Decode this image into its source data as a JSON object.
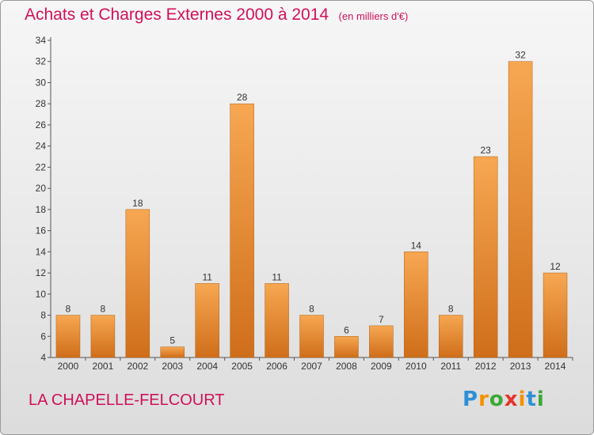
{
  "header": {
    "title": "Achats et Charges Externes 2000 à 2014",
    "subtitle": "(en milliers d'€)"
  },
  "footer": {
    "location": "LA CHAPELLE-FELCOURT",
    "logo_letters": [
      {
        "char": "P",
        "color": "#2e8fd6"
      },
      {
        "char": "r",
        "color": "#f39200"
      },
      {
        "char": "o",
        "color": "#3aa935"
      },
      {
        "char": "x",
        "color": "#e6332a"
      },
      {
        "char": "i",
        "color": "#f39200"
      },
      {
        "char": "t",
        "color": "#2e8fd6"
      },
      {
        "char": "i",
        "color": "#3aa935"
      }
    ]
  },
  "colors": {
    "title": "#d0105a",
    "bar_light": "#f7a752",
    "bar_dark": "#cf6e1a",
    "axis": "#555555"
  },
  "chart_data": {
    "type": "bar",
    "categories": [
      "2000",
      "2001",
      "2002",
      "2003",
      "2004",
      "2005",
      "2006",
      "2007",
      "2008",
      "2009",
      "2010",
      "2011",
      "2012",
      "2013",
      "2014"
    ],
    "values": [
      8,
      8,
      18,
      5,
      11,
      28,
      11,
      8,
      6,
      7,
      14,
      8,
      23,
      32,
      12
    ],
    "ylim": [
      4,
      34
    ],
    "yticks": [
      4,
      6,
      8,
      10,
      12,
      14,
      16,
      18,
      20,
      22,
      24,
      26,
      28,
      30,
      32,
      34
    ],
    "grid": false,
    "data_labels": true
  }
}
